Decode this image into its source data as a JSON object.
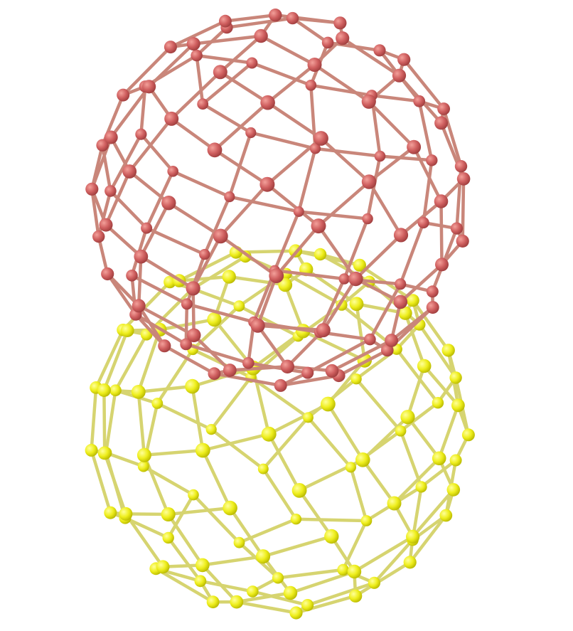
{
  "scene": {
    "background": "#ffffff",
    "subjects": [
      {
        "name": "cage-top",
        "atom_color": "#c85c5c",
        "bond_color": "#c9867a"
      },
      {
        "name": "cage-bottom",
        "atom_color": "#eaea1e",
        "bond_color": "#d6d470"
      }
    ]
  }
}
